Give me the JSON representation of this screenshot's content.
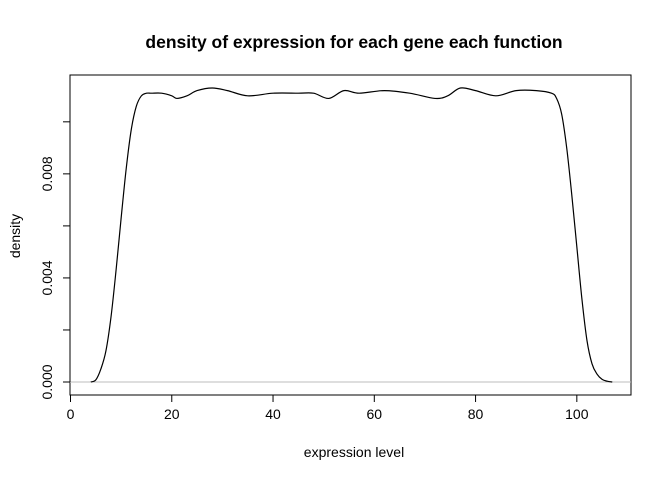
{
  "chart_data": {
    "type": "line",
    "title": "density of expression for each gene each function",
    "xlabel": "expression level",
    "ylabel": "density",
    "xlim": [
      -0.1,
      110.7
    ],
    "ylim": [
      -0.0005,
      0.0118
    ],
    "xticks": [
      0,
      20,
      40,
      60,
      80,
      100
    ],
    "xtick_labels": [
      "0",
      "20",
      "40",
      "60",
      "80",
      "100"
    ],
    "yticks": [
      0.0,
      0.002,
      0.004,
      0.006,
      0.008,
      0.01
    ],
    "ytick_labels": [
      "0.000",
      "",
      "0.004",
      "",
      "0.008",
      ""
    ],
    "baseline": 0,
    "grid": false,
    "colors": {
      "line": "#000000",
      "baseline": "#bebebe",
      "axis": "#000000"
    },
    "series": [
      {
        "x": [
          4.0,
          5.0,
          6.0,
          7.0,
          8.0,
          9.0,
          10.0,
          11.0,
          12.0,
          13.0,
          14.0,
          15.0,
          16.0,
          18.0,
          20.0,
          21.0,
          23.0,
          25.0,
          28.0,
          31.0,
          35.0,
          40.0,
          45.0,
          48.0,
          51.0,
          54.0,
          57.0,
          62.0,
          67.0,
          72.0,
          74.5,
          77.0,
          80.0,
          84.0,
          88.0,
          92.0,
          95.0,
          96.0,
          97.0,
          98.0,
          99.0,
          100.0,
          101.0,
          102.0,
          103.0,
          104.0,
          105.0,
          106.0,
          107.0
        ],
        "y": [
          0.0,
          8e-05,
          0.0005,
          0.0012,
          0.0025,
          0.0043,
          0.0063,
          0.0082,
          0.0097,
          0.0106,
          0.011,
          0.0111,
          0.0111,
          0.0111,
          0.011,
          0.0109,
          0.011,
          0.0112,
          0.0113,
          0.0112,
          0.011,
          0.0111,
          0.0111,
          0.0111,
          0.0109,
          0.0112,
          0.0111,
          0.0112,
          0.0111,
          0.0109,
          0.011,
          0.0113,
          0.0112,
          0.011,
          0.0112,
          0.0112,
          0.0111,
          0.0109,
          0.0103,
          0.009,
          0.0072,
          0.0052,
          0.0032,
          0.0016,
          0.0007,
          0.0003,
          0.0001,
          3e-05,
          0.0
        ]
      }
    ]
  }
}
